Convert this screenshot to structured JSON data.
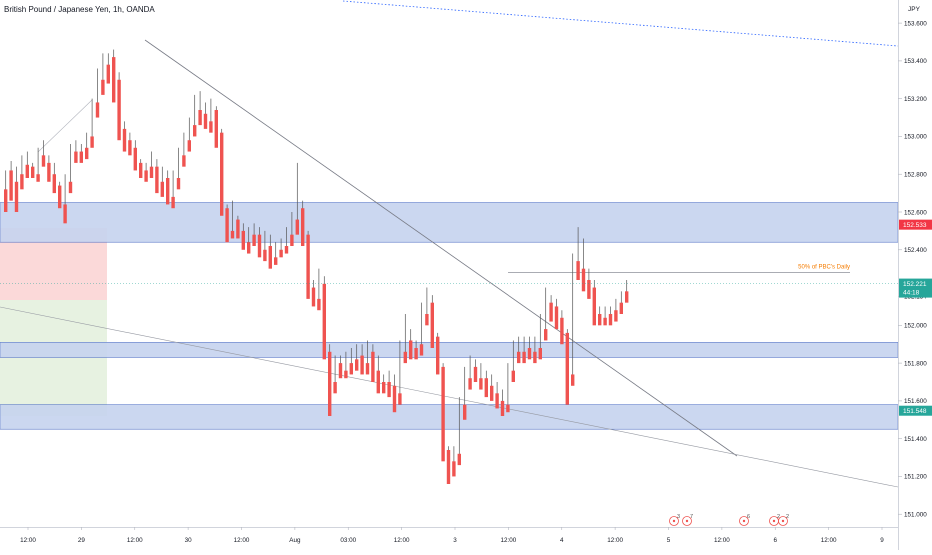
{
  "header": {
    "symbol_title": "British Pound / Japanese Yen, 1h, OANDA"
  },
  "axis": {
    "currency": "JPY"
  },
  "chart_data": {
    "type": "candlestick",
    "y_ticks": [
      "153.600",
      "153.400",
      "153.200",
      "153.000",
      "152.800",
      "152.600",
      "152.400",
      "152.154",
      "152.000",
      "151.800",
      "151.600",
      "151.400",
      "151.200",
      "151.000"
    ],
    "ylim": [
      150.98,
      153.68
    ],
    "x_ticks": [
      "12:00",
      "29",
      "12:00",
      "30",
      "12:00",
      "Aug",
      "03:00",
      "12:00",
      "3",
      "12:00",
      "4",
      "12:00",
      "5",
      "12:00",
      "6",
      "12:00",
      "9"
    ],
    "price_labels": [
      {
        "name": "resistance-level",
        "text": "152.533",
        "value": 152.533,
        "color": "#f23645"
      },
      {
        "name": "last-price",
        "text": "152.221",
        "sub": "44:18",
        "value": 152.221,
        "color": "#26a69a"
      },
      {
        "name": "support-level",
        "text": "151.548",
        "value": 151.548,
        "color": "#26a69a"
      }
    ],
    "annotation": {
      "text": "50% of PBC's Daily",
      "value": 152.28
    },
    "zones": [
      {
        "name": "upper-supply-zone",
        "top": 152.65,
        "bottom": 152.44
      },
      {
        "name": "middle-demand-zone",
        "top": 151.91,
        "bottom": 151.83
      },
      {
        "name": "lower-demand-zone",
        "top": 151.58,
        "bottom": 151.45
      }
    ],
    "candles": [
      [
        152.72,
        152.82,
        152.62,
        152.6
      ],
      [
        152.82,
        152.87,
        152.68,
        152.66
      ],
      [
        152.76,
        152.84,
        152.62,
        152.6
      ],
      [
        152.8,
        152.9,
        152.74,
        152.72
      ],
      [
        152.85,
        152.92,
        152.8,
        152.78
      ],
      [
        152.84,
        152.86,
        152.8,
        152.78
      ],
      [
        152.8,
        152.94,
        152.78,
        152.76
      ],
      [
        152.9,
        152.98,
        152.86,
        152.84
      ],
      [
        152.86,
        152.9,
        152.78,
        152.76
      ],
      [
        152.8,
        152.86,
        152.72,
        152.7
      ],
      [
        152.74,
        152.76,
        152.64,
        152.62
      ],
      [
        152.64,
        152.8,
        152.56,
        152.54
      ],
      [
        152.76,
        152.96,
        152.72,
        152.7
      ],
      [
        152.92,
        152.98,
        152.88,
        152.86
      ],
      [
        152.92,
        152.96,
        152.88,
        152.86
      ],
      [
        152.94,
        153.02,
        152.9,
        152.88
      ],
      [
        153.0,
        153.2,
        152.96,
        152.94
      ],
      [
        153.18,
        153.36,
        153.12,
        153.1
      ],
      [
        153.3,
        153.44,
        153.24,
        153.22
      ],
      [
        153.38,
        153.44,
        153.3,
        153.28
      ],
      [
        153.42,
        153.46,
        153.2,
        153.18
      ],
      [
        153.3,
        153.34,
        153.0,
        152.98
      ],
      [
        153.04,
        153.08,
        152.94,
        152.92
      ],
      [
        152.98,
        153.02,
        152.92,
        152.9
      ],
      [
        152.94,
        152.98,
        152.84,
        152.82
      ],
      [
        152.86,
        152.88,
        152.8,
        152.78
      ],
      [
        152.82,
        152.86,
        152.78,
        152.76
      ],
      [
        152.84,
        152.92,
        152.8,
        152.78
      ],
      [
        152.84,
        152.88,
        152.72,
        152.7
      ],
      [
        152.76,
        152.84,
        152.7,
        152.68
      ],
      [
        152.78,
        152.82,
        152.66,
        152.64
      ],
      [
        152.68,
        152.82,
        152.64,
        152.62
      ],
      [
        152.78,
        152.94,
        152.74,
        152.72
      ],
      [
        152.9,
        153.02,
        152.86,
        152.84
      ],
      [
        152.98,
        153.1,
        152.94,
        152.92
      ],
      [
        153.06,
        153.22,
        153.02,
        153.0
      ],
      [
        153.14,
        153.24,
        153.08,
        153.06
      ],
      [
        153.12,
        153.18,
        153.06,
        153.04
      ],
      [
        153.08,
        153.2,
        153.04,
        153.02
      ],
      [
        153.14,
        153.16,
        152.96,
        152.94
      ],
      [
        153.02,
        153.04,
        152.6,
        152.58
      ],
      [
        152.62,
        152.64,
        152.46,
        152.44
      ],
      [
        152.5,
        152.66,
        152.48,
        152.46
      ],
      [
        152.56,
        152.58,
        152.48,
        152.46
      ],
      [
        152.5,
        152.54,
        152.42,
        152.4
      ],
      [
        152.44,
        152.52,
        152.4,
        152.38
      ],
      [
        152.48,
        152.54,
        152.44,
        152.42
      ],
      [
        152.48,
        152.52,
        152.38,
        152.36
      ],
      [
        152.4,
        152.5,
        152.36,
        152.34
      ],
      [
        152.42,
        152.48,
        152.32,
        152.3
      ],
      [
        152.36,
        152.44,
        152.34,
        152.32
      ],
      [
        152.4,
        152.46,
        152.38,
        152.36
      ],
      [
        152.42,
        152.52,
        152.4,
        152.38
      ],
      [
        152.48,
        152.6,
        152.44,
        152.42
      ],
      [
        152.56,
        152.86,
        152.5,
        152.48
      ],
      [
        152.62,
        152.66,
        152.44,
        152.42
      ],
      [
        152.48,
        152.5,
        152.16,
        152.14
      ],
      [
        152.2,
        152.24,
        152.12,
        152.1
      ],
      [
        152.14,
        152.3,
        152.1,
        152.08
      ],
      [
        152.22,
        152.26,
        151.84,
        151.82
      ],
      [
        151.86,
        151.9,
        151.54,
        151.52
      ],
      [
        151.7,
        151.84,
        151.66,
        151.64
      ],
      [
        151.8,
        151.84,
        151.74,
        151.72
      ],
      [
        151.76,
        151.86,
        151.74,
        151.72
      ],
      [
        151.8,
        151.88,
        151.76,
        151.74
      ],
      [
        151.82,
        151.9,
        151.78,
        151.76
      ],
      [
        151.84,
        151.9,
        151.76,
        151.74
      ],
      [
        151.8,
        151.92,
        151.76,
        151.74
      ],
      [
        151.86,
        151.9,
        151.72,
        151.7
      ],
      [
        151.76,
        151.84,
        151.66,
        151.64
      ],
      [
        151.7,
        151.74,
        151.66,
        151.64
      ],
      [
        151.7,
        151.76,
        151.64,
        151.62
      ],
      [
        151.68,
        151.74,
        151.56,
        151.54
      ],
      [
        151.64,
        151.92,
        151.6,
        151.58
      ],
      [
        151.86,
        152.06,
        151.82,
        151.8
      ],
      [
        151.92,
        151.98,
        151.84,
        151.82
      ],
      [
        151.88,
        151.92,
        151.84,
        151.82
      ],
      [
        151.9,
        152.12,
        151.86,
        151.84
      ],
      [
        152.06,
        152.2,
        152.02,
        152.0
      ],
      [
        152.12,
        152.16,
        151.9,
        151.88
      ],
      [
        151.94,
        151.96,
        151.76,
        151.74
      ],
      [
        151.78,
        151.8,
        151.3,
        151.28
      ],
      [
        151.34,
        151.36,
        151.18,
        151.16
      ],
      [
        151.28,
        151.36,
        151.22,
        151.2
      ],
      [
        151.32,
        151.62,
        151.28,
        151.26
      ],
      [
        151.58,
        151.78,
        151.52,
        151.5
      ],
      [
        151.72,
        151.84,
        151.68,
        151.66
      ],
      [
        151.78,
        151.82,
        151.72,
        151.7
      ],
      [
        151.72,
        151.8,
        151.68,
        151.66
      ],
      [
        151.72,
        151.76,
        151.64,
        151.62
      ],
      [
        151.68,
        151.74,
        151.62,
        151.6
      ],
      [
        151.64,
        151.7,
        151.58,
        151.56
      ],
      [
        151.6,
        151.66,
        151.54,
        151.52
      ],
      [
        151.58,
        151.8,
        151.56,
        151.54
      ],
      [
        151.76,
        151.92,
        151.72,
        151.7
      ],
      [
        151.86,
        151.94,
        151.82,
        151.8
      ],
      [
        151.86,
        151.94,
        151.82,
        151.8
      ],
      [
        151.88,
        151.94,
        151.84,
        151.82
      ],
      [
        151.86,
        151.94,
        151.82,
        151.8
      ],
      [
        151.88,
        152.06,
        151.84,
        151.82
      ],
      [
        151.98,
        152.2,
        151.94,
        151.92
      ],
      [
        152.12,
        152.16,
        152.04,
        152.02
      ],
      [
        152.1,
        152.14,
        152.0,
        151.98
      ],
      [
        152.04,
        152.08,
        151.92,
        151.9
      ],
      [
        151.96,
        151.98,
        151.6,
        151.58
      ],
      [
        151.74,
        152.38,
        151.7,
        151.68
      ],
      [
        152.34,
        152.52,
        152.26,
        152.24
      ],
      [
        152.3,
        152.46,
        152.2,
        152.18
      ],
      [
        152.24,
        152.3,
        152.16,
        152.14
      ],
      [
        152.2,
        152.24,
        152.02,
        152.0
      ],
      [
        152.06,
        152.1,
        152.02,
        152.0
      ],
      [
        152.04,
        152.1,
        152.02,
        152.0
      ],
      [
        152.06,
        152.1,
        152.02,
        152.0
      ],
      [
        152.08,
        152.14,
        152.04,
        152.02
      ],
      [
        152.12,
        152.18,
        152.08,
        152.06
      ],
      [
        152.18,
        152.24,
        152.14,
        152.12
      ]
    ]
  },
  "events": [
    {
      "name": "event-icon-1",
      "text": "3"
    },
    {
      "name": "event-icon-2",
      "text": "7"
    },
    {
      "name": "event-icon-3",
      "text": "6"
    },
    {
      "name": "event-icon-4",
      "text": "2"
    },
    {
      "name": "event-icon-5",
      "text": "2"
    }
  ],
  "colors": {
    "up": "#4caf50",
    "down": "#ef5350",
    "zone_fill": "#c5d3ee",
    "zone_border": "#5a78c8",
    "axis_text": "#131722",
    "trendline": "#787b86",
    "dotted_line": "#2962ff",
    "annotation": "#f57c00"
  }
}
